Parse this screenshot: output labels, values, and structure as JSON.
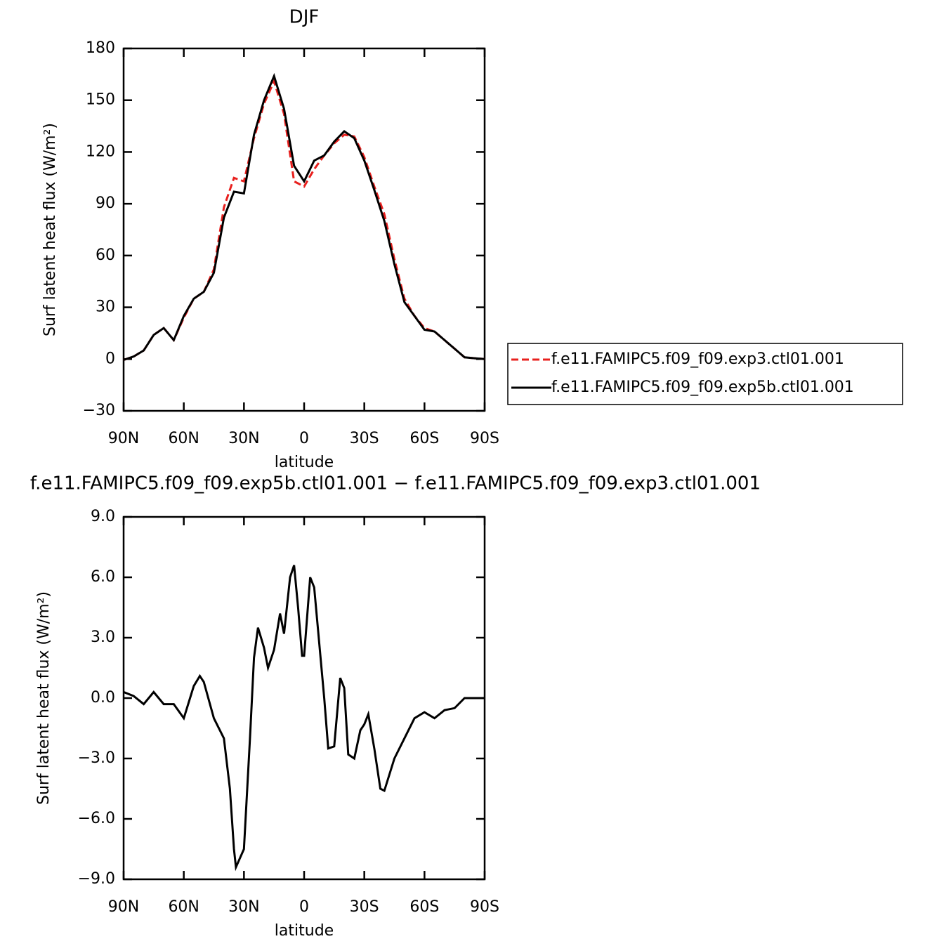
{
  "chart_data": [
    {
      "type": "line",
      "title": "DJF",
      "xlabel": "latitude",
      "ylabel": "Surf latent heat flux (W/m²)",
      "x": [
        90,
        85,
        80,
        75,
        70,
        65,
        60,
        55,
        50,
        45,
        40,
        35,
        30,
        25,
        20,
        15,
        10,
        5,
        0,
        -5,
        -10,
        -15,
        -20,
        -25,
        -30,
        -35,
        -40,
        -45,
        -50,
        -55,
        -60,
        -65,
        -70,
        -75,
        -80,
        -85,
        -90
      ],
      "series": [
        {
          "name": "f.e11.FAMIPC5.f09_f09.exp3.ctl01.001",
          "color": "#e8201e",
          "line_style": "dashed",
          "values": [
            -0.5,
            1.5,
            5,
            14,
            18,
            11,
            24,
            35,
            39,
            52,
            88,
            105,
            103,
            128,
            148,
            161,
            142,
            103,
            100,
            110,
            118,
            125,
            130,
            129,
            117,
            100,
            84,
            58,
            35,
            25,
            18,
            16,
            11,
            6,
            1,
            0.5,
            0
          ]
        },
        {
          "name": "f.e11.FAMIPC5.f09_f09.exp5b.ctl01.001",
          "color": "#000000",
          "line_style": "solid",
          "values": [
            -0.5,
            1.5,
            5,
            14,
            18,
            11,
            25,
            35,
            39,
            50,
            82,
            97,
            96,
            130,
            150,
            164,
            145,
            112,
            103,
            115,
            118,
            126,
            132,
            128,
            115,
            98,
            80,
            55,
            33,
            25,
            17,
            16,
            11,
            6,
            1,
            0.5,
            0
          ]
        }
      ],
      "xlim": [
        90,
        -90
      ],
      "xticks": [
        {
          "value": 90,
          "label": "90N"
        },
        {
          "value": 60,
          "label": "60N"
        },
        {
          "value": 30,
          "label": "30N"
        },
        0,
        {
          "value": -30,
          "label": "30S"
        },
        {
          "value": -60,
          "label": "60S"
        },
        {
          "value": -90,
          "label": "90S"
        }
      ],
      "ylim": [
        -30,
        180
      ],
      "yticks": [
        {
          "value": -30,
          "label": "−30"
        },
        0,
        30,
        60,
        90,
        120,
        150,
        180
      ],
      "legend": "outside-right"
    },
    {
      "type": "line",
      "title": "f.e11.FAMIPC5.f09_f09.exp5b.ctl01.001 − f.e11.FAMIPC5.f09_f09.exp3.ctl01.001",
      "xlabel": "latitude",
      "ylabel": "Surf latent heat flux (W/m²)",
      "x": [
        90,
        85,
        80,
        75,
        70,
        65,
        60,
        55,
        52,
        50,
        45,
        40,
        37,
        35,
        34,
        30,
        27,
        25,
        23,
        20,
        18,
        15,
        12,
        10,
        7,
        5,
        3,
        1,
        0,
        -3,
        -5,
        -10,
        -12,
        -15,
        -18,
        -20,
        -22,
        -25,
        -28,
        -30,
        -32,
        -35,
        -38,
        -40,
        -45,
        -50,
        -55,
        -60,
        -65,
        -70,
        -75,
        -80,
        -85,
        -90
      ],
      "series": [
        {
          "color": "#000000",
          "line_style": "solid",
          "values": [
            0.3,
            0.1,
            -0.3,
            0.3,
            -0.3,
            -0.3,
            -1.0,
            0.6,
            1.1,
            0.8,
            -1.0,
            -2.0,
            -4.5,
            -7.5,
            -8.4,
            -7.5,
            -2.0,
            2.0,
            3.5,
            2.5,
            1.5,
            2.4,
            4.2,
            3.2,
            6.0,
            6.6,
            4.5,
            2.1,
            2.1,
            6.0,
            5.5,
            0.0,
            -2.5,
            -2.4,
            1.0,
            0.5,
            -2.8,
            -3.0,
            -1.6,
            -1.3,
            -0.8,
            -2.5,
            -4.5,
            -4.6,
            -3.0,
            -2.0,
            -1.0,
            -0.7,
            -1.0,
            -0.6,
            -0.5,
            0.0,
            0.0,
            0.0
          ]
        }
      ],
      "xlim": [
        90,
        -90
      ],
      "xticks": [
        {
          "value": 90,
          "label": "90N"
        },
        {
          "value": 60,
          "label": "60N"
        },
        {
          "value": 30,
          "label": "30N"
        },
        0,
        {
          "value": -30,
          "label": "30S"
        },
        {
          "value": -60,
          "label": "60S"
        },
        {
          "value": -90,
          "label": "90S"
        }
      ],
      "ylim": [
        -9,
        9
      ],
      "yticks": [
        {
          "value": -9,
          "label": "−9.0"
        },
        {
          "value": -6,
          "label": "−6.0"
        },
        {
          "value": -3,
          "label": "−3.0"
        },
        {
          "value": 0,
          "label": "0.0"
        },
        {
          "value": 3,
          "label": "3.0"
        },
        {
          "value": 6,
          "label": "6.0"
        },
        {
          "value": 9,
          "label": "9.0"
        }
      ]
    }
  ]
}
